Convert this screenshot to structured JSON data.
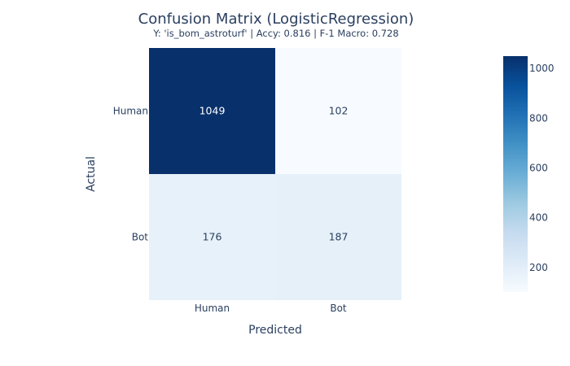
{
  "chart_data": {
    "type": "heatmap",
    "title": "Confusion Matrix (LogisticRegression)",
    "subtitle": "Y: 'is_bom_astroturf' | Accy: 0.816 | F-1 Macro: 0.728",
    "xlabel": "Predicted",
    "ylabel": "Actual",
    "x_categories": [
      "Human",
      "Bot"
    ],
    "y_categories": [
      "Human",
      "Bot"
    ],
    "z": [
      [
        1049,
        102
      ],
      [
        176,
        187
      ]
    ],
    "colorscale": "Blues",
    "zmin": 102,
    "zmax": 1049,
    "colorbar": {
      "ticks": [
        200,
        400,
        600,
        800,
        1000
      ]
    }
  }
}
